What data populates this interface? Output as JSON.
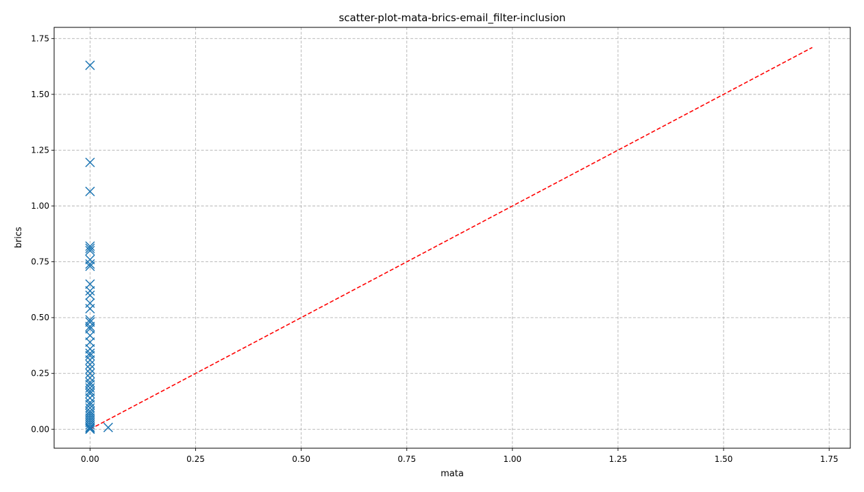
{
  "chart_data": {
    "type": "scatter",
    "title": "scatter-plot-mata-brics-email_filter-inclusion",
    "xlabel": "mata",
    "ylabel": "brics",
    "xlim": [
      -0.085,
      1.8
    ],
    "ylim": [
      -0.085,
      1.8
    ],
    "x_ticks": [
      "0.00",
      "0.25",
      "0.50",
      "0.75",
      "1.00",
      "1.25",
      "1.50",
      "1.75"
    ],
    "y_ticks": [
      "0.00",
      "0.25",
      "0.50",
      "0.75",
      "1.00",
      "1.25",
      "1.50",
      "1.75"
    ],
    "x_tick_values": [
      0,
      0.25,
      0.5,
      0.75,
      1.0,
      1.25,
      1.5,
      1.75
    ],
    "y_tick_values": [
      0,
      0.25,
      0.5,
      0.75,
      1.0,
      1.25,
      1.5,
      1.75
    ],
    "grid": true,
    "marker": "x",
    "marker_color": "#1f77b4",
    "reference_line": {
      "from": [
        0,
        0
      ],
      "to": [
        1.71,
        1.71
      ],
      "style": "dashed",
      "color": "#ff0000"
    },
    "points": [
      [
        0,
        1.63
      ],
      [
        0,
        1.195
      ],
      [
        0,
        1.065
      ],
      [
        0,
        0.82
      ],
      [
        0,
        0.81
      ],
      [
        0,
        0.8
      ],
      [
        0,
        0.76
      ],
      [
        0,
        0.74
      ],
      [
        0,
        0.73
      ],
      [
        0,
        0.65
      ],
      [
        0,
        0.62
      ],
      [
        0,
        0.6
      ],
      [
        0,
        0.565
      ],
      [
        0,
        0.54
      ],
      [
        0,
        0.49
      ],
      [
        0,
        0.48
      ],
      [
        0,
        0.46
      ],
      [
        0,
        0.45
      ],
      [
        0,
        0.42
      ],
      [
        0,
        0.39
      ],
      [
        0,
        0.36
      ],
      [
        0,
        0.34
      ],
      [
        0,
        0.33
      ],
      [
        0,
        0.31
      ],
      [
        0,
        0.29
      ],
      [
        0,
        0.27
      ],
      [
        0,
        0.25
      ],
      [
        0,
        0.23
      ],
      [
        0,
        0.21
      ],
      [
        0,
        0.2
      ],
      [
        0,
        0.185
      ],
      [
        0,
        0.17
      ],
      [
        0,
        0.16
      ],
      [
        0,
        0.14
      ],
      [
        0,
        0.12
      ],
      [
        0,
        0.11
      ],
      [
        0,
        0.095
      ],
      [
        0,
        0.08
      ],
      [
        0,
        0.07
      ],
      [
        0,
        0.06
      ],
      [
        0,
        0.05
      ],
      [
        0,
        0.04
      ],
      [
        0,
        0.03
      ],
      [
        0,
        0.02
      ],
      [
        0,
        0.01
      ],
      [
        0,
        0.005
      ],
      [
        0,
        0.0
      ],
      [
        0.043,
        0.008
      ]
    ]
  }
}
